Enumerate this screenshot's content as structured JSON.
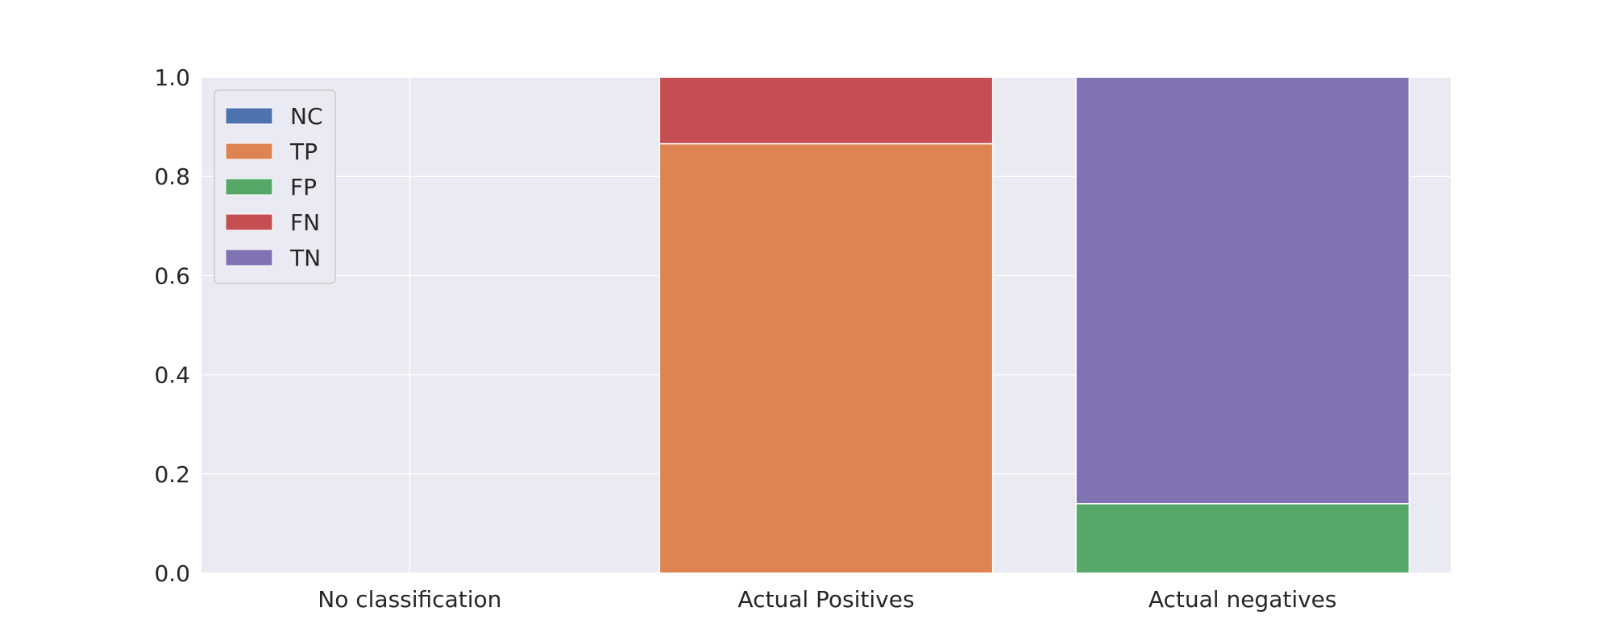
{
  "chart_data": {
    "type": "bar",
    "stacked": true,
    "categories": [
      "No classification",
      "Actual Positives",
      "Actual negatives"
    ],
    "series": [
      {
        "name": "NC",
        "color": "#4c72b0",
        "values": [
          0,
          0,
          0
        ]
      },
      {
        "name": "TP",
        "color": "#dd8452",
        "values": [
          0,
          0.866,
          0
        ]
      },
      {
        "name": "FP",
        "color": "#55a868",
        "values": [
          0,
          0,
          0.14
        ]
      },
      {
        "name": "FN",
        "color": "#c44e52",
        "values": [
          0,
          0.134,
          0
        ]
      },
      {
        "name": "TN",
        "color": "#8172b3",
        "values": [
          0,
          0,
          0.86
        ]
      }
    ],
    "title": "",
    "xlabel": "",
    "ylabel": "",
    "ylim": [
      0,
      1.0
    ],
    "yticks": [
      "0.0",
      "0.2",
      "0.4",
      "0.6",
      "0.8",
      "1.0"
    ],
    "grid": true,
    "legend": "top-left",
    "background": "#eaeaf2",
    "grid_color": "#ffffff"
  }
}
